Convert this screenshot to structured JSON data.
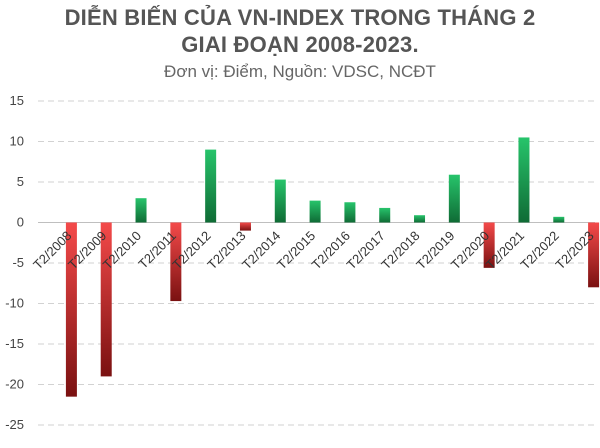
{
  "header": {
    "title_line1": "DIỄN BIẾN CỦA VN-INDEX TRONG THÁNG 2",
    "title_line2": "GIAI ĐOẠN 2008-2023.",
    "subtitle": "Đơn vị: Điểm, Nguồn: VDSC, NCĐT"
  },
  "chart_data": {
    "type": "bar",
    "title": "DIỄN BIẾN CỦA VN-INDEX TRONG THÁNG 2 GIAI ĐOẠN 2008-2023.",
    "subtitle": "Đơn vị: Điểm, Nguồn: VDSC, NCĐT",
    "categories": [
      "T2/2008",
      "T2/2009",
      "T2/2010",
      "T2/2011",
      "T2/2012",
      "T2/2013",
      "T2/2014",
      "T2/2015",
      "T2/2016",
      "T2/2017",
      "T2/2018",
      "T2/2019",
      "T2/2020",
      "T2/2021",
      "T2/2022",
      "T2/2023"
    ],
    "values": [
      -21.5,
      -19,
      3,
      -9.7,
      9,
      -1,
      5.3,
      2.7,
      2.5,
      1.8,
      0.9,
      5.9,
      -5.6,
      10.5,
      0.7,
      -8
    ],
    "ylim": [
      -25,
      15
    ],
    "yticks": [
      15,
      10,
      5,
      0,
      -5,
      -10,
      -15,
      -20,
      -25
    ],
    "grid": true,
    "colors": {
      "positive_top": "#27c46b",
      "positive_bottom": "#0f6b35",
      "negative_top": "#f44a4a",
      "negative_bottom": "#7a1111",
      "grid": "#d2d2d2",
      "axis": "#bfbfbf"
    }
  }
}
